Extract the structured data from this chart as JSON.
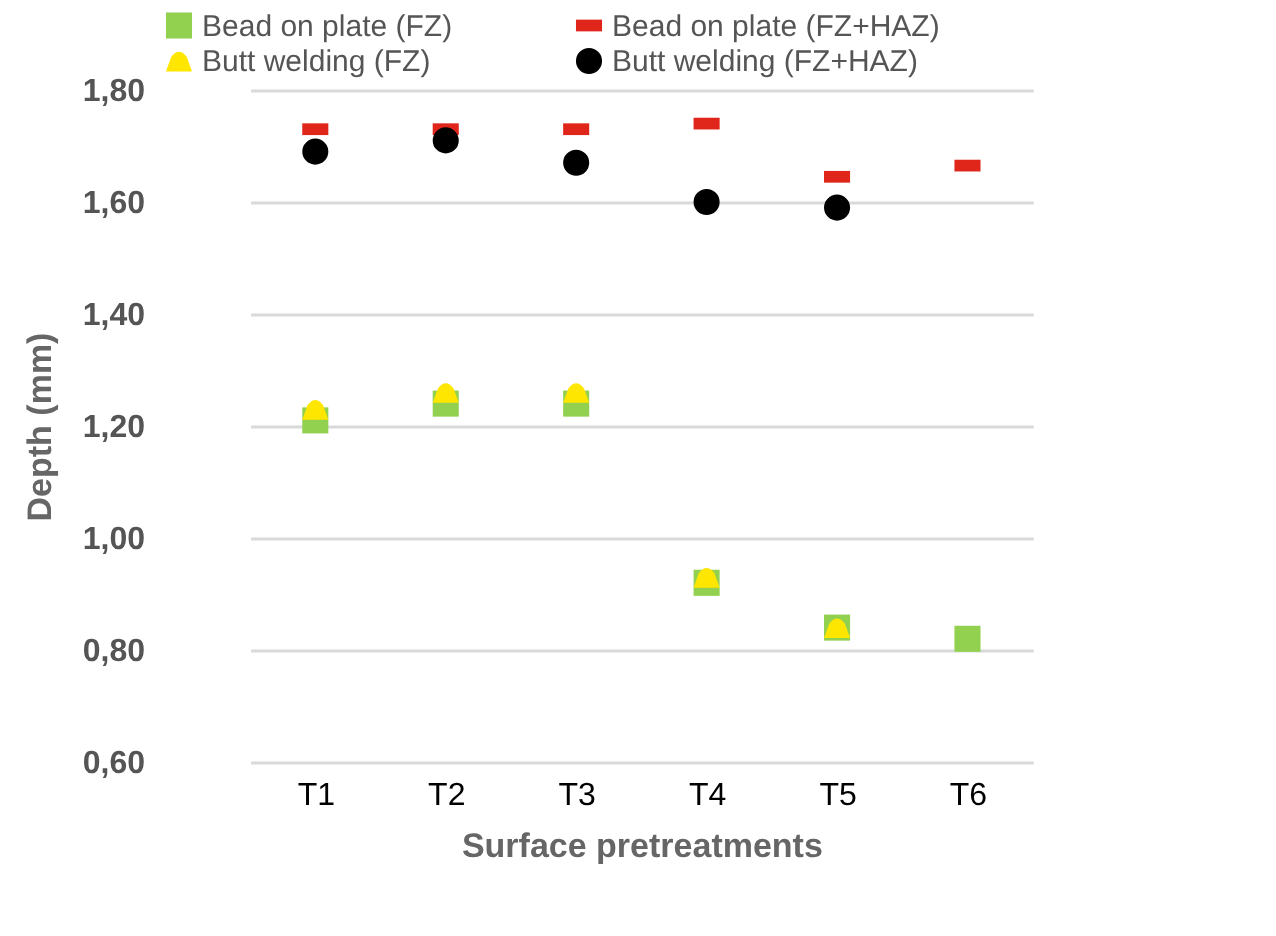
{
  "chart_data": {
    "type": "scatter",
    "xlabel": "Surface pretreatments",
    "ylabel": "Depth (mm)",
    "categories": [
      "T1",
      "T2",
      "T3",
      "T4",
      "T5",
      "T6"
    ],
    "series": [
      {
        "name": "Bead on plate (FZ)",
        "color": "#92d050",
        "marker": "square",
        "values": [
          1.21,
          1.24,
          1.24,
          0.92,
          0.84,
          0.82
        ]
      },
      {
        "name": "Butt welding (FZ)",
        "color": "#ffe600",
        "marker": "triangle",
        "values": [
          1.23,
          1.26,
          1.26,
          0.93,
          0.84,
          null
        ]
      },
      {
        "name": "Bead on plate (FZ+HAZ)",
        "color": "#e0261b",
        "values": [
          1.73,
          1.73,
          1.73,
          1.74,
          1.645,
          1.665
        ]
      },
      {
        "name": "Butt welding (FZ+HAZ)",
        "color": "#000000",
        "marker": "circle",
        "values": [
          1.69,
          1.71,
          1.67,
          1.6,
          1.59,
          null
        ]
      }
    ],
    "ylim": [
      0.6,
      1.8
    ],
    "yticks": [
      {
        "value": 0.6,
        "label": "0,60"
      },
      {
        "value": 0.8,
        "label": "0,80"
      },
      {
        "value": 1.0,
        "label": "1,00"
      },
      {
        "value": 1.2,
        "label": "1,20"
      },
      {
        "value": 1.4,
        "label": "1,40"
      },
      {
        "value": 1.6,
        "label": "1,60"
      },
      {
        "value": 1.8,
        "label": "1,80"
      }
    ],
    "grid": "y",
    "legend": "top"
  }
}
